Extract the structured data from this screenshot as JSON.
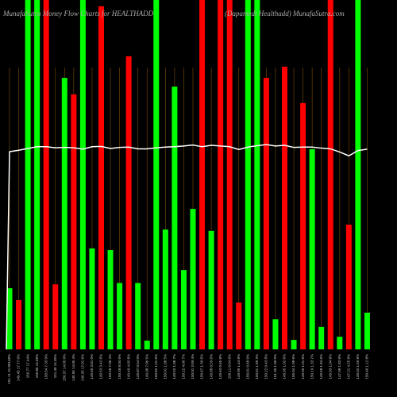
{
  "chart_data": {
    "type": "bar",
    "title": "MunafaSutra  Money Flow  Charts for HEALTHADD",
    "subtitle": "(Dapamedi Healthadd) MunafaSutra.com",
    "categories": [
      "151.11 31.06148%",
      "149.45 17.77 0%",
      "150.77 17.44%",
      "150.86 14.58%",
      "150.54 7.33 0%",
      "151.40 14.35%",
      "150.37 14.05 0%",
      "149.95 14.05 4%",
      "149.35 17.01 6%",
      "149.55 3.81 0%",
      "149.53 3.42 6%",
      "150.58 7.06 4%",
      "150.48 8.04 6%",
      "149.49 4.65 8%",
      "149.87 0.54 0%",
      "149.98 7.06 5%",
      "150.83 1.01 6%",
      "150.01 1.08 5%",
      "149.52 1.08 7%",
      "150.22 4.09 7%",
      "150.01 3.89 4%",
      "150.67 1.39 6%",
      "149.88 0.59 6%",
      "149.63 0.65 8%",
      "150.11 0.64 6%",
      "149.99 1.44 8%",
      "150.01 0.68 0%",
      "150.81 1.89 3%",
      "150.22 0.43 8%",
      "151.30 1.00 9%",
      "149.95 1.02 6%",
      "150.94 1.08 6%",
      "149.99 1.01 6%",
      "150.19 1.33 7%",
      "149.58 1.84 6%",
      "149.93 1.04 8%",
      "147.98 1.83 8%",
      "147.21 4.25 8%",
      "149.52 1.59 8%",
      "150.46 1.12 8%"
    ],
    "values": [
      17.5,
      14.1,
      100,
      100,
      100,
      18.6,
      77.7,
      73,
      100,
      28.9,
      98.2,
      28.4,
      19,
      83.9,
      19,
      2.5,
      100,
      34.3,
      75.2,
      22.7,
      40.2,
      100,
      33.9,
      100,
      100,
      13.4,
      100,
      100,
      77.7,
      8.6,
      80.9,
      2.7,
      70.5,
      57.3,
      6.4,
      100,
      3.6,
      35.7,
      100,
      10.5
    ],
    "colors": [
      "#00ff00",
      "#ff0000",
      "#00ff00",
      "#00ff00",
      "#ff0000",
      "#ff0000",
      "#00ff00",
      "#ff0000",
      "#00ff00",
      "#00ff00",
      "#ff0000",
      "#00ff00",
      "#00ff00",
      "#ff0000",
      "#00ff00",
      "#00ff00",
      "#00ff00",
      "#00ff00",
      "#00ff00",
      "#00ff00",
      "#00ff00",
      "#ff0000",
      "#00ff00",
      "#ff0000",
      "#ff0000",
      "#ff0000",
      "#00ff00",
      "#00ff00",
      "#ff0000",
      "#00ff00",
      "#ff0000",
      "#00ff00",
      "#ff0000",
      "#00ff00",
      "#00ff00",
      "#ff0000",
      "#00ff00",
      "#ff0000",
      "#00ff00",
      "#00ff00"
    ],
    "line": {
      "color": "#ffffff",
      "values": [
        56.6,
        57,
        57.5,
        58,
        58,
        57.7,
        57.8,
        57.7,
        57.3,
        58,
        58.1,
        57.5,
        57.8,
        57.9,
        57.4,
        57.4,
        57.7,
        57.9,
        58,
        58.2,
        58.5,
        58,
        58.4,
        58.2,
        58,
        57.2,
        57.9,
        58.3,
        58.6,
        58.2,
        58.4,
        57.8,
        57.9,
        57.9,
        57.6,
        57.4,
        56.5,
        55.4,
        56.9,
        57.3
      ]
    },
    "ylim": [
      0,
      100
    ],
    "grid": true
  }
}
